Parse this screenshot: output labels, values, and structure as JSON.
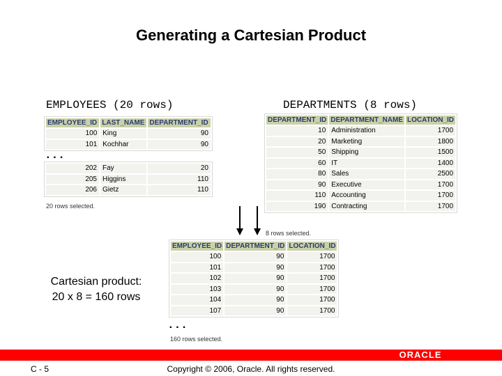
{
  "title": "Generating a Cartesian Product",
  "employees": {
    "caption": "EMPLOYEES (20 rows)",
    "headers": [
      "EMPLOYEE_ID",
      "LAST_NAME",
      "DEPARTMENT_ID"
    ],
    "rows_top": [
      [
        "100",
        "King",
        "90"
      ],
      [
        "101",
        "Kochhar",
        "90"
      ]
    ],
    "ellipsis": "...",
    "rows_bottom": [
      [
        "202",
        "Fay",
        "20"
      ],
      [
        "205",
        "Higgins",
        "110"
      ],
      [
        "206",
        "Gietz",
        "110"
      ]
    ],
    "footer": "20 rows selected."
  },
  "departments": {
    "caption": "DEPARTMENTS (8 rows)",
    "headers": [
      "DEPARTMENT_ID",
      "DEPARTMENT_NAME",
      "LOCATION_ID"
    ],
    "rows": [
      [
        "10",
        "Administration",
        "1700"
      ],
      [
        "20",
        "Marketing",
        "1800"
      ],
      [
        "50",
        "Shipping",
        "1500"
      ],
      [
        "60",
        "IT",
        "1400"
      ],
      [
        "80",
        "Sales",
        "2500"
      ],
      [
        "90",
        "Executive",
        "1700"
      ],
      [
        "110",
        "Accounting",
        "1700"
      ],
      [
        "190",
        "Contracting",
        "1700"
      ]
    ],
    "footer": "8 rows selected."
  },
  "cartesian": {
    "label_line1": "Cartesian product:",
    "label_line2": "20 x 8 = 160 rows",
    "headers": [
      "EMPLOYEE_ID",
      "DEPARTMENT_ID",
      "LOCATION_ID"
    ],
    "rows": [
      [
        "100",
        "90",
        "1700"
      ],
      [
        "101",
        "90",
        "1700"
      ],
      [
        "102",
        "90",
        "1700"
      ],
      [
        "103",
        "90",
        "1700"
      ],
      [
        "104",
        "90",
        "1700"
      ],
      [
        "107",
        "90",
        "1700"
      ]
    ],
    "ellipsis": "...",
    "footer": "160 rows selected."
  },
  "footer": {
    "slide_number": "C - 5",
    "copyright": "Copyright © 2006, Oracle. All rights reserved.",
    "logo": "ORACLE",
    "bar_color": "#ff0000"
  }
}
